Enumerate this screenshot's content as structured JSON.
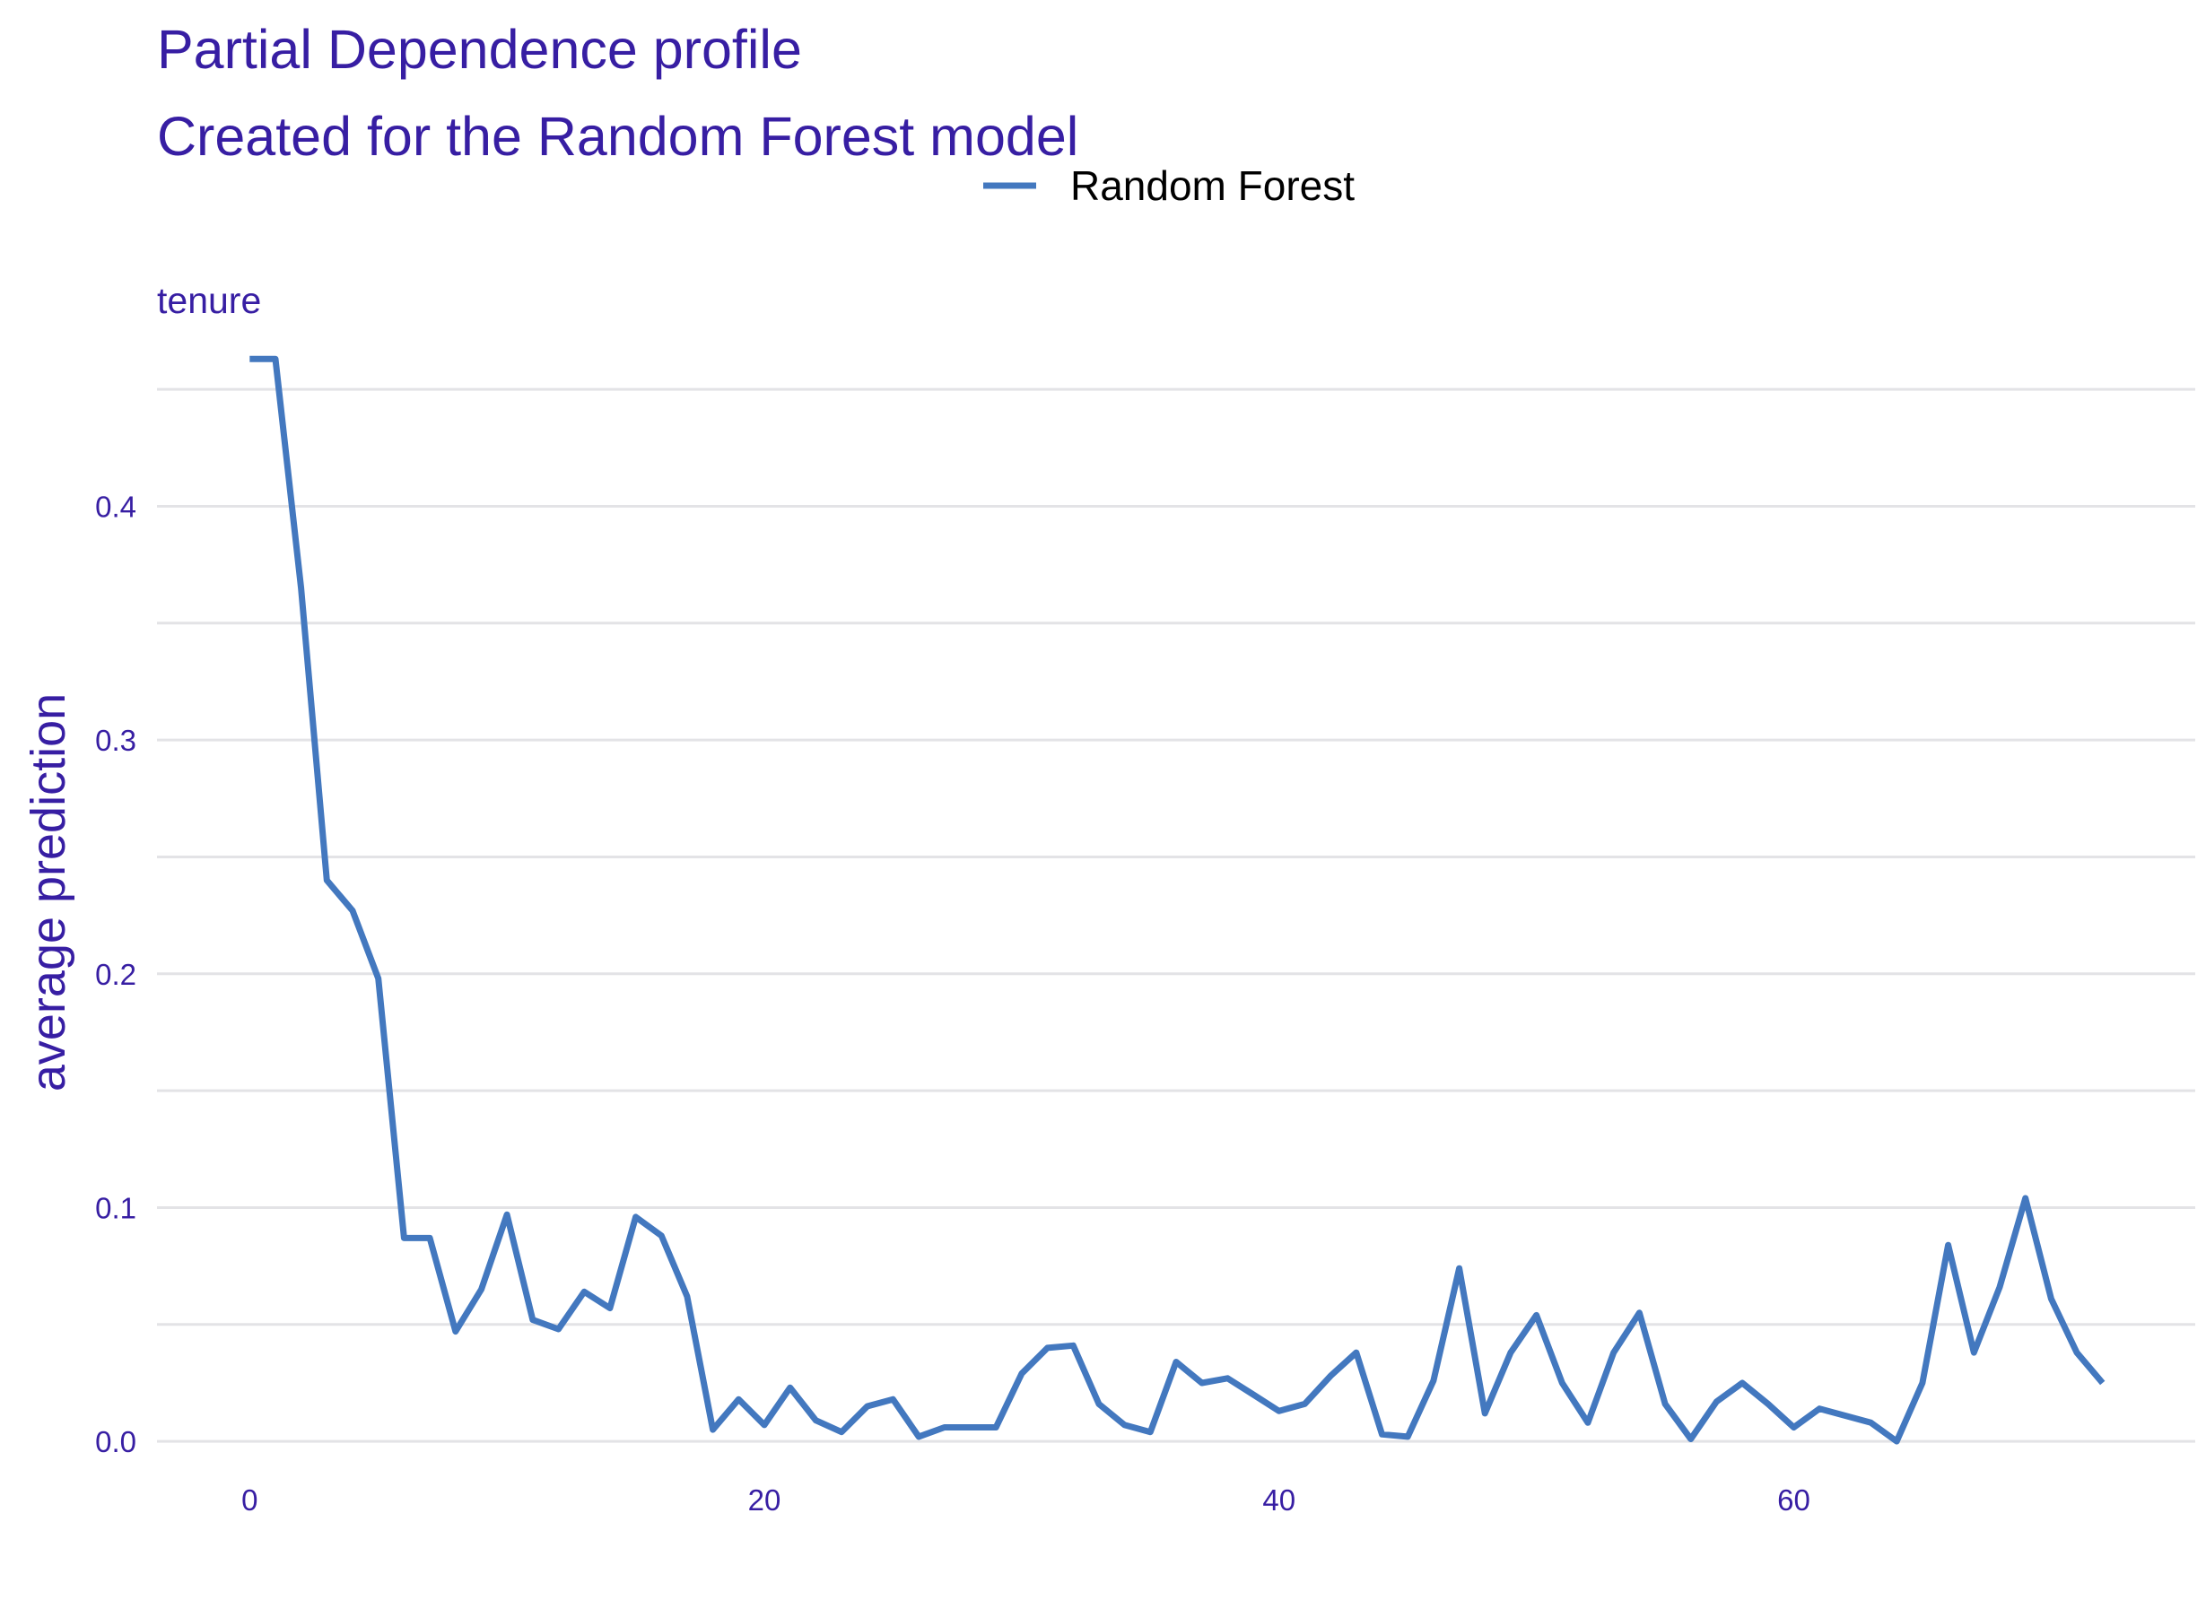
{
  "chart_data": {
    "type": "line",
    "title": "Partial Dependence profile",
    "subtitle": "Created for the Random Forest model",
    "panel_label": "tenure",
    "xlabel": "",
    "ylabel": "average prediction",
    "xlim": [
      -3.6,
      75.6
    ],
    "ylim": [
      -0.008,
      0.465
    ],
    "x_ticks": [
      0,
      20,
      40,
      60
    ],
    "x_tick_labels": [
      "0",
      "20",
      "40",
      "60"
    ],
    "y_ticks": [
      0.0,
      0.1,
      0.2,
      0.3,
      0.4
    ],
    "y_tick_labels": [
      "0.0",
      "0.1",
      "0.2",
      "0.3",
      "0.4"
    ],
    "y_minor_grid": [
      0.05,
      0.15,
      0.25,
      0.35,
      0.45
    ],
    "grid": true,
    "legend_position": "top",
    "series": [
      {
        "name": "Random Forest",
        "color": "#4378bf",
        "x": [
          0,
          1,
          2,
          3,
          4,
          5,
          6,
          7,
          8,
          9,
          10,
          11,
          12,
          13,
          14,
          15,
          16,
          17,
          18,
          19,
          20,
          21,
          22,
          23,
          24,
          25,
          26,
          27,
          28,
          29,
          30,
          31,
          32,
          33,
          34,
          35,
          36,
          37,
          38,
          39,
          40,
          41,
          42,
          43,
          44,
          45,
          46,
          47,
          48,
          49,
          50,
          51,
          52,
          53,
          54,
          55,
          56,
          57,
          58,
          59,
          60,
          61,
          62,
          63,
          64,
          65,
          66,
          67,
          68,
          69,
          70,
          71,
          72
        ],
        "y": [
          0.463,
          0.463,
          0.365,
          0.24,
          0.227,
          0.198,
          0.087,
          0.087,
          0.047,
          0.065,
          0.097,
          0.052,
          0.048,
          0.064,
          0.057,
          0.096,
          0.088,
          0.062,
          0.005,
          0.018,
          0.007,
          0.023,
          0.009,
          0.004,
          0.015,
          0.018,
          0.002,
          0.006,
          0.006,
          0.006,
          0.029,
          0.04,
          0.041,
          0.016,
          0.007,
          0.004,
          0.034,
          0.025,
          0.027,
          0.02,
          0.013,
          0.016,
          0.028,
          0.038,
          0.003,
          0.002,
          0.026,
          0.074,
          0.012,
          0.038,
          0.054,
          0.025,
          0.008,
          0.038,
          0.055,
          0.016,
          0.001,
          0.017,
          0.025,
          0.016,
          0.006,
          0.014,
          0.011,
          0.008,
          0.0,
          0.025,
          0.084,
          0.038,
          0.066,
          0.104,
          0.061,
          0.038,
          0.025
        ]
      }
    ]
  }
}
